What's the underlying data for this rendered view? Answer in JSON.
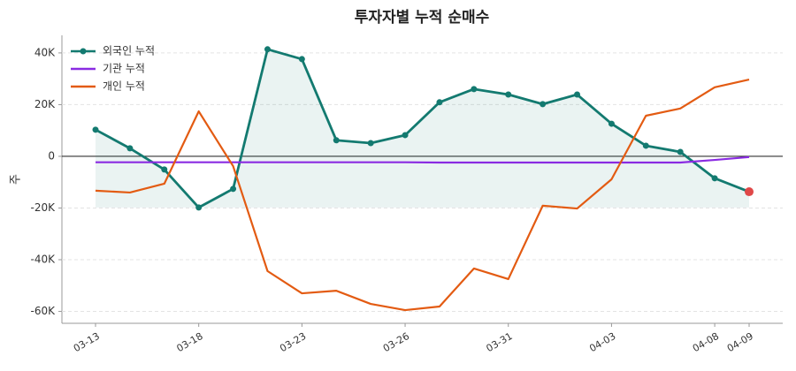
{
  "chart_data": {
    "type": "line",
    "title": "투자자별 누적 순매수",
    "y_label": "주",
    "categories": [
      "03-13",
      null,
      null,
      "03-18",
      null,
      null,
      "03-23",
      null,
      null,
      "03-26",
      null,
      null,
      "03-31",
      null,
      null,
      "04-03",
      null,
      null,
      "04-08",
      "04-09"
    ],
    "series": [
      {
        "name": "외국인 누적",
        "color": "#137a70",
        "marker": true,
        "fill": true,
        "values": [
          10300,
          3100,
          -5100,
          -19800,
          -12600,
          41400,
          37600,
          6200,
          5100,
          8200,
          20900,
          26000,
          23900,
          20200,
          23900,
          12600,
          4100,
          1700,
          -8500,
          -13700
        ]
      },
      {
        "name": "기관 누적",
        "color": "#8a2be2",
        "marker": false,
        "fill": false,
        "values": [
          -2300,
          -2300,
          -2300,
          -2300,
          -2300,
          -2300,
          -2300,
          -2300,
          -2300,
          -2300,
          -2400,
          -2400,
          -2400,
          -2400,
          -2400,
          -2400,
          -2400,
          -2400,
          -1400,
          -300
        ]
      },
      {
        "name": "개인 누적",
        "color": "#e35b12",
        "marker": false,
        "fill": false,
        "values": [
          -13300,
          -14000,
          -10600,
          17400,
          -3800,
          -44400,
          -53000,
          -52000,
          -57100,
          -59500,
          -58100,
          -43400,
          -47500,
          -19100,
          -20200,
          -8900,
          15700,
          18500,
          26700,
          29700
        ]
      }
    ],
    "highlight_color": "#e04848",
    "ylim": [
      -64600,
      46800
    ],
    "yticks": [
      {
        "value": -60000,
        "label": "-60K"
      },
      {
        "value": -40000,
        "label": "-40K"
      },
      {
        "value": -20000,
        "label": "-20K"
      },
      0,
      {
        "value": 20000,
        "label": "20K"
      },
      {
        "value": 40000,
        "label": "40K"
      }
    ],
    "grid": true,
    "legend": "upper-left"
  }
}
